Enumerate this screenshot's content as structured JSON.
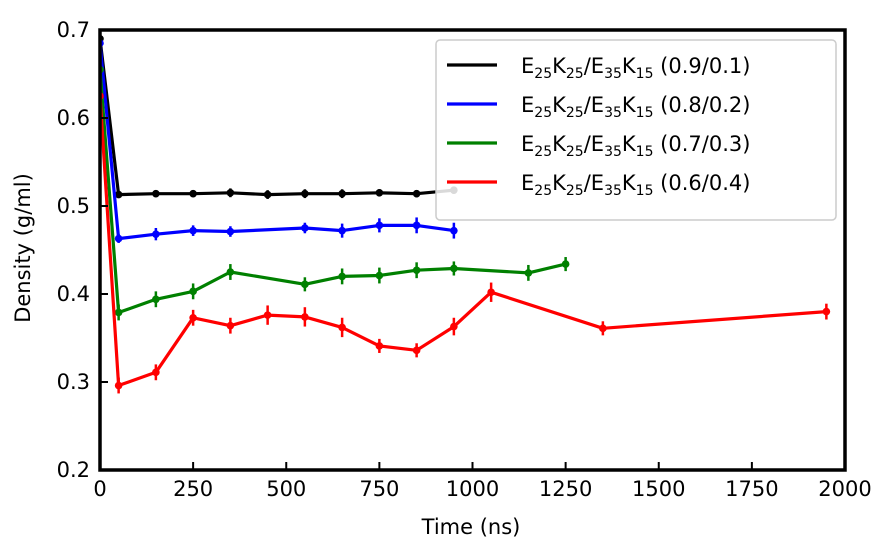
{
  "chart_data": {
    "type": "line",
    "title": "",
    "xlabel": "Time (ns)",
    "ylabel": "Density (g/ml)",
    "xlim": [
      0,
      2000
    ],
    "ylim": [
      0.2,
      0.7
    ],
    "xticks": [
      0,
      250,
      500,
      750,
      1000,
      1250,
      1500,
      1750,
      2000
    ],
    "yticks": [
      0.2,
      0.3,
      0.4,
      0.5,
      0.6,
      0.7
    ],
    "legend_position": "top-right",
    "grid": false,
    "series": [
      {
        "name": "E25K25/E35K15 (0.9/0.1)",
        "name_parts": {
          "a": "E",
          "a_sub": "25",
          "b": "K",
          "b_sub": "25",
          "c": "/E",
          "c_sub": "35",
          "d": "K",
          "d_sub": "15",
          "tail": " (0.9/0.1)"
        },
        "color": "#000000",
        "x": [
          0,
          50,
          150,
          250,
          350,
          450,
          550,
          650,
          750,
          850,
          950
        ],
        "y": [
          0.69,
          0.513,
          0.514,
          0.514,
          0.515,
          0.513,
          0.514,
          0.514,
          0.515,
          0.514,
          0.518
        ],
        "err": [
          0.002,
          0.003,
          0.003,
          0.003,
          0.005,
          0.005,
          0.005,
          0.005,
          0.004,
          0.004,
          0.004
        ]
      },
      {
        "name": "E25K25/E35K15 (0.8/0.2)",
        "name_parts": {
          "a": "E",
          "a_sub": "25",
          "b": "K",
          "b_sub": "25",
          "c": "/E",
          "c_sub": "35",
          "d": "K",
          "d_sub": "15",
          "tail": " (0.8/0.2)"
        },
        "color": "#0000ff",
        "x": [
          0,
          50,
          150,
          250,
          350,
          550,
          650,
          750,
          850,
          950
        ],
        "y": [
          0.685,
          0.463,
          0.468,
          0.472,
          0.471,
          0.475,
          0.472,
          0.478,
          0.478,
          0.472
        ],
        "err": [
          0.004,
          0.005,
          0.007,
          0.006,
          0.006,
          0.006,
          0.008,
          0.008,
          0.009,
          0.009
        ]
      },
      {
        "name": "E25K25/E35K15 (0.7/0.3)",
        "name_parts": {
          "a": "E",
          "a_sub": "25",
          "b": "K",
          "b_sub": "25",
          "c": "/E",
          "c_sub": "35",
          "d": "K",
          "d_sub": "15",
          "tail": " (0.7/0.3)"
        },
        "color": "#008000",
        "x": [
          0,
          50,
          150,
          250,
          350,
          550,
          650,
          750,
          850,
          950,
          1150,
          1250
        ],
        "y": [
          0.655,
          0.379,
          0.394,
          0.403,
          0.425,
          0.411,
          0.42,
          0.421,
          0.427,
          0.429,
          0.424,
          0.434
        ],
        "err": [
          0.004,
          0.009,
          0.009,
          0.009,
          0.009,
          0.008,
          0.009,
          0.009,
          0.009,
          0.008,
          0.009,
          0.008
        ]
      },
      {
        "name": "E25K25/E35K15 (0.6/0.4)",
        "name_parts": {
          "a": "E",
          "a_sub": "25",
          "b": "K",
          "b_sub": "25",
          "c": "/E",
          "c_sub": "35",
          "d": "K",
          "d_sub": "15",
          "tail": " (0.6/0.4)"
        },
        "color": "#ff0000",
        "x": [
          0,
          50,
          150,
          250,
          350,
          450,
          550,
          650,
          750,
          850,
          950,
          1050,
          1350,
          1950
        ],
        "y": [
          0.625,
          0.296,
          0.311,
          0.373,
          0.364,
          0.376,
          0.374,
          0.362,
          0.341,
          0.336,
          0.363,
          0.402,
          0.361,
          0.38
        ],
        "err": [
          0.005,
          0.009,
          0.009,
          0.009,
          0.009,
          0.011,
          0.011,
          0.011,
          0.008,
          0.008,
          0.01,
          0.011,
          0.008,
          0.009
        ]
      }
    ]
  }
}
